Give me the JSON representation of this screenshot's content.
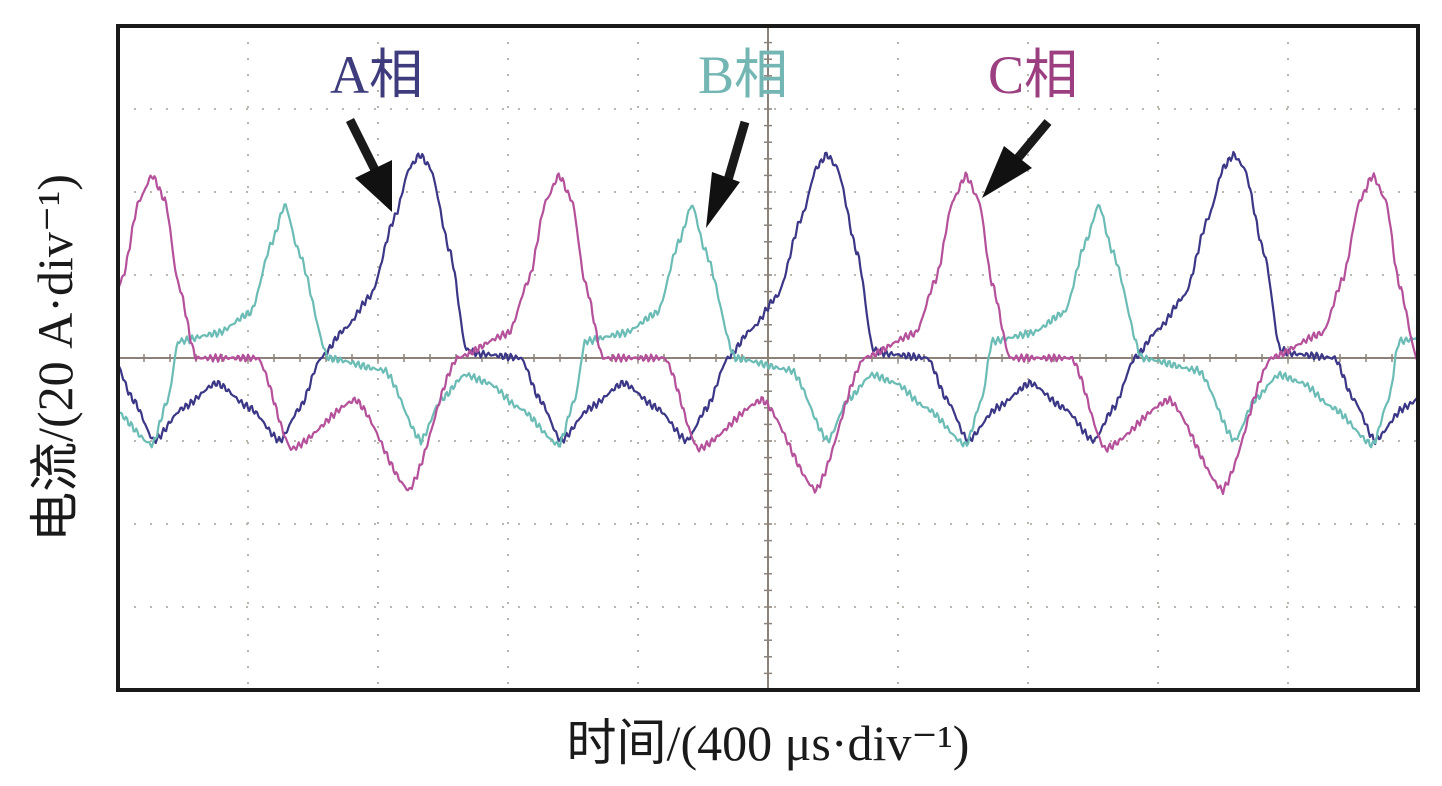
{
  "chart_data": {
    "type": "line",
    "title": "",
    "xlabel": "时间/(400 μs·div⁻¹)",
    "ylabel": "电流/(20 A·div⁻¹)",
    "x_unit": "µs",
    "y_unit": "A",
    "x_per_div": 400,
    "y_per_div": 20,
    "xlim": [
      0,
      4000
    ],
    "ylim": [
      -80,
      80
    ],
    "grid": true,
    "period_us": 1252,
    "series": [
      {
        "name": "A相",
        "color": "#3b3786",
        "label_color": "#3f3c7e",
        "first_peak_us": 929,
        "waveform": [
          [
            -626,
            -6
          ],
          [
            -523,
            -12
          ],
          [
            -431,
            -20
          ],
          [
            -369,
            -12
          ],
          [
            -305,
            0
          ],
          [
            -231,
            7
          ],
          [
            -151,
            15
          ],
          [
            -77,
            34
          ],
          [
            -31,
            46
          ],
          [
            0,
            49
          ],
          [
            31,
            46
          ],
          [
            95,
            25
          ],
          [
            142,
            2
          ],
          [
            185,
            1
          ],
          [
            311,
            0
          ],
          [
            369,
            -10
          ],
          [
            434,
            -20
          ],
          [
            523,
            -12
          ],
          [
            626,
            -6
          ]
        ]
      },
      {
        "name": "B相",
        "color": "#6cbcb6",
        "label_color": "#73b6b3",
        "first_peak_us": 514,
        "waveform": [
          [
            -626,
            -6
          ],
          [
            -532,
            -12
          ],
          [
            -409,
            -21
          ],
          [
            -360,
            -10
          ],
          [
            -329,
            4
          ],
          [
            -206,
            6
          ],
          [
            -105,
            11
          ],
          [
            -40,
            28
          ],
          [
            0,
            37
          ],
          [
            40,
            26
          ],
          [
            132,
            0
          ],
          [
            308,
            -3
          ],
          [
            418,
            -20
          ],
          [
            480,
            -10
          ],
          [
            554,
            -4
          ],
          [
            626,
            -6
          ]
        ]
      },
      {
        "name": "C相",
        "color": "#b4519a",
        "label_color": "#9c3f80",
        "first_peak_us": 105,
        "waveform": [
          [
            -626,
            -10
          ],
          [
            -462,
            -32
          ],
          [
            -314,
            0
          ],
          [
            -154,
            6
          ],
          [
            -92,
            19
          ],
          [
            -40,
            38
          ],
          [
            0,
            44
          ],
          [
            40,
            38
          ],
          [
            80,
            18
          ],
          [
            135,
            0
          ],
          [
            326,
            0
          ],
          [
            428,
            -22
          ],
          [
            626,
            -10
          ]
        ]
      }
    ]
  }
}
